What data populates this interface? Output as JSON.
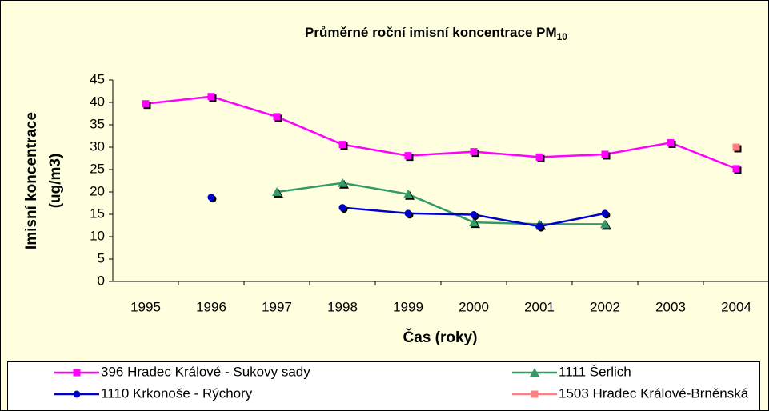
{
  "chart_data": {
    "type": "line",
    "title": "Průměrné roční imisní koncentrace PM",
    "title_subscript": "10",
    "y_label": [
      "Imisní koncentrace",
      "(ug/m3)"
    ],
    "x_label": "Čas (roky)",
    "categories": [
      "1995",
      "1996",
      "1997",
      "1998",
      "1999",
      "2000",
      "2001",
      "2002",
      "2003",
      "2004"
    ],
    "ylim": [
      0,
      45
    ],
    "yticks": [
      0,
      5,
      10,
      15,
      20,
      25,
      30,
      35,
      40,
      45
    ],
    "grid": false,
    "series": [
      {
        "name": "396 Hradec Králové - Sukovy sady",
        "color": "#ff00ff",
        "marker": "square",
        "values": [
          39.7,
          41.3,
          36.8,
          30.6,
          28.1,
          29.0,
          27.8,
          28.4,
          31.0,
          25.2
        ]
      },
      {
        "name": "1111 Šerlich",
        "color": "#339966",
        "marker": "triangle",
        "values": [
          null,
          null,
          20,
          22,
          19.5,
          13.2,
          12.8,
          12.8,
          null,
          null
        ]
      },
      {
        "name": "1110 Krkonoše - Rýchory",
        "color": "#0000cc",
        "marker": "circle",
        "values": [
          null,
          18.8,
          null,
          16.5,
          15.2,
          14.9,
          12.3,
          15.2,
          null,
          null
        ]
      },
      {
        "name": "1503 Hradec Králové-Brněnská",
        "color": "#ff8080",
        "marker": "square",
        "values": [
          null,
          null,
          null,
          null,
          null,
          null,
          null,
          null,
          null,
          30
        ]
      }
    ]
  }
}
